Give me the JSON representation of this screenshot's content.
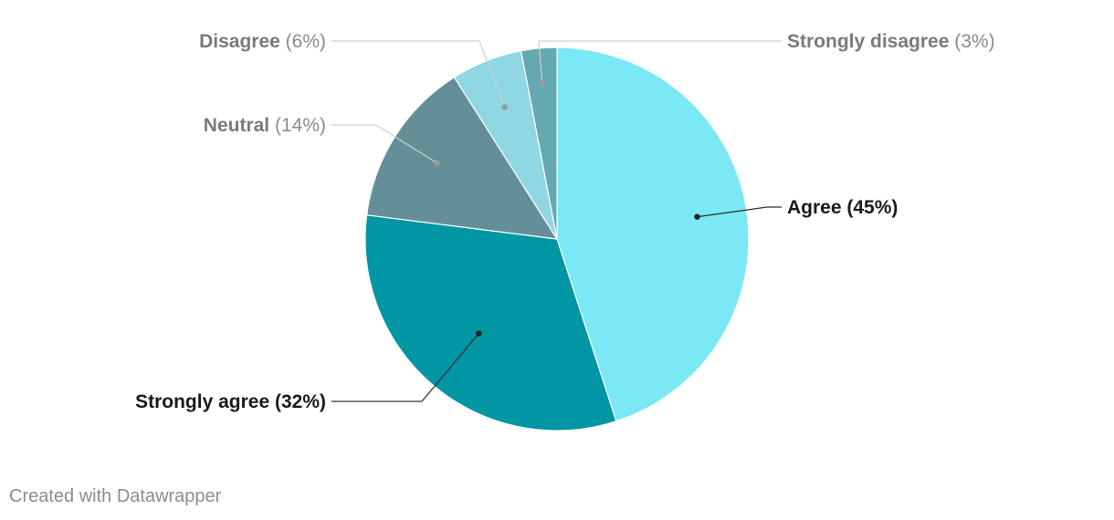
{
  "chart_data": {
    "type": "pie",
    "start": "12 o'clock, clockwise",
    "slices": [
      {
        "label": "Agree",
        "value": 45,
        "display": "(45%)",
        "color": "#7ae8f5",
        "emphasis": true
      },
      {
        "label": "Strongly agree",
        "value": 32,
        "display": "(32%)",
        "color": "#0096a3",
        "emphasis": true
      },
      {
        "label": "Neutral",
        "value": 14,
        "display": "(14%)",
        "color": "#658f98",
        "emphasis": false
      },
      {
        "label": "Disagree",
        "value": 6,
        "display": "(6%)",
        "color": "#8fd8e3",
        "emphasis": false
      },
      {
        "label": "Strongly disagree",
        "value": 3,
        "display": "(3%)",
        "color": "#64a8b1",
        "emphasis": false
      }
    ]
  },
  "footer": {
    "credit": "Created with Datawrapper"
  }
}
